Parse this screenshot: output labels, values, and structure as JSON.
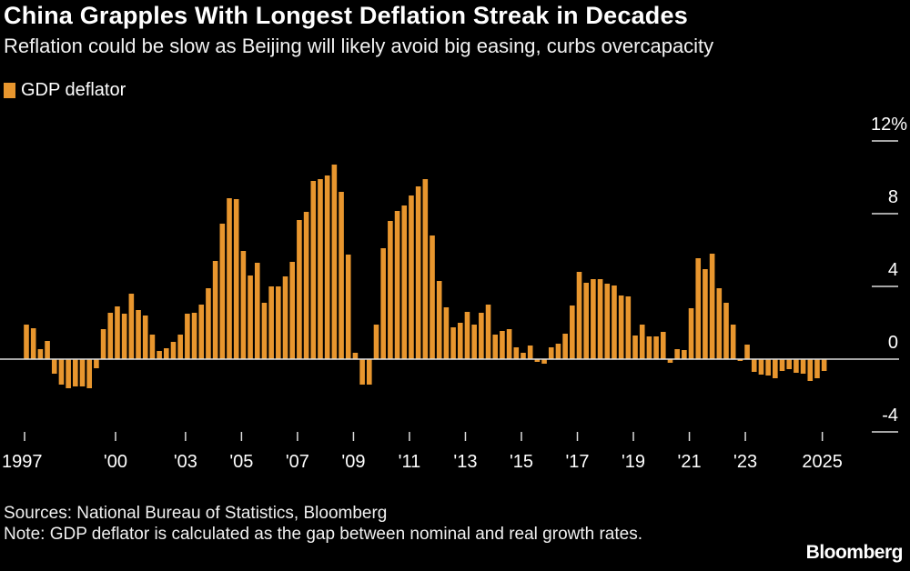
{
  "title": "China Grapples With Longest Deflation Streak in Decades",
  "subtitle": "Reflation could be slow as Beijing will likely avoid big easing, curbs overcapacity",
  "legend": {
    "label": "GDP deflator",
    "color": "#e8962e"
  },
  "sources": "Sources: National Bureau of Statistics, Bloomberg",
  "note": "Note: GDP deflator is calculated as the gap between nominal and real growth rates.",
  "logo": "Bloomberg",
  "chart_data": {
    "type": "bar",
    "frequency": "quarterly",
    "series": [
      {
        "name": "GDP deflator",
        "color": "#e8962e",
        "values": [
          1.9,
          1.7,
          0.55,
          1.0,
          -0.8,
          -1.4,
          -1.6,
          -1.5,
          -1.5,
          -1.6,
          -0.5,
          1.65,
          2.55,
          2.9,
          2.5,
          3.6,
          2.7,
          2.4,
          1.35,
          0.45,
          0.6,
          0.95,
          1.35,
          2.5,
          2.55,
          3.0,
          3.9,
          5.4,
          7.45,
          8.85,
          8.8,
          5.95,
          4.6,
          5.3,
          3.1,
          4.0,
          4.0,
          4.55,
          5.35,
          7.65,
          8.1,
          9.8,
          9.9,
          10.1,
          10.7,
          9.2,
          5.75,
          0.35,
          -1.4,
          -1.4,
          1.9,
          6.1,
          7.6,
          8.15,
          8.45,
          9.0,
          9.5,
          9.9,
          6.8,
          4.3,
          2.85,
          1.75,
          2.0,
          2.6,
          1.9,
          2.55,
          3.0,
          1.35,
          1.55,
          1.65,
          0.65,
          0.35,
          0.75,
          -0.15,
          -0.25,
          0.65,
          0.85,
          1.4,
          2.95,
          4.8,
          4.2,
          4.4,
          4.4,
          4.15,
          4.05,
          3.5,
          3.45,
          1.3,
          1.9,
          1.25,
          1.25,
          1.5,
          -0.2,
          0.55,
          0.5,
          2.8,
          5.55,
          4.95,
          5.8,
          3.9,
          3.1,
          1.9,
          -0.1,
          0.8,
          -0.7,
          -0.85,
          -0.9,
          -1.05,
          -0.65,
          -0.55,
          -0.75,
          -0.8,
          -1.2,
          -1.05,
          -0.65
        ]
      }
    ],
    "x_ticks": [
      {
        "label": "1997",
        "index": 0
      },
      {
        "label": "'00",
        "index": 13
      },
      {
        "label": "'03",
        "index": 23
      },
      {
        "label": "'05",
        "index": 31
      },
      {
        "label": "'07",
        "index": 39
      },
      {
        "label": "'09",
        "index": 47
      },
      {
        "label": "'11",
        "index": 55
      },
      {
        "label": "'13",
        "index": 63
      },
      {
        "label": "'15",
        "index": 71
      },
      {
        "label": "'17",
        "index": 79
      },
      {
        "label": "'19",
        "index": 87
      },
      {
        "label": "'21",
        "index": 95
      },
      {
        "label": "'23",
        "index": 103
      },
      {
        "label": "2025",
        "index": 114
      }
    ],
    "y_ticks": [
      {
        "value": 12,
        "label": "12%"
      },
      {
        "value": 8,
        "label": "8"
      },
      {
        "value": 4,
        "label": "4"
      },
      {
        "value": 0,
        "label": "0"
      },
      {
        "value": -4,
        "label": "-4"
      }
    ],
    "ylim": [
      -4,
      12
    ],
    "y_axis_side": "right",
    "grid": false,
    "legend_position": "top-left"
  }
}
